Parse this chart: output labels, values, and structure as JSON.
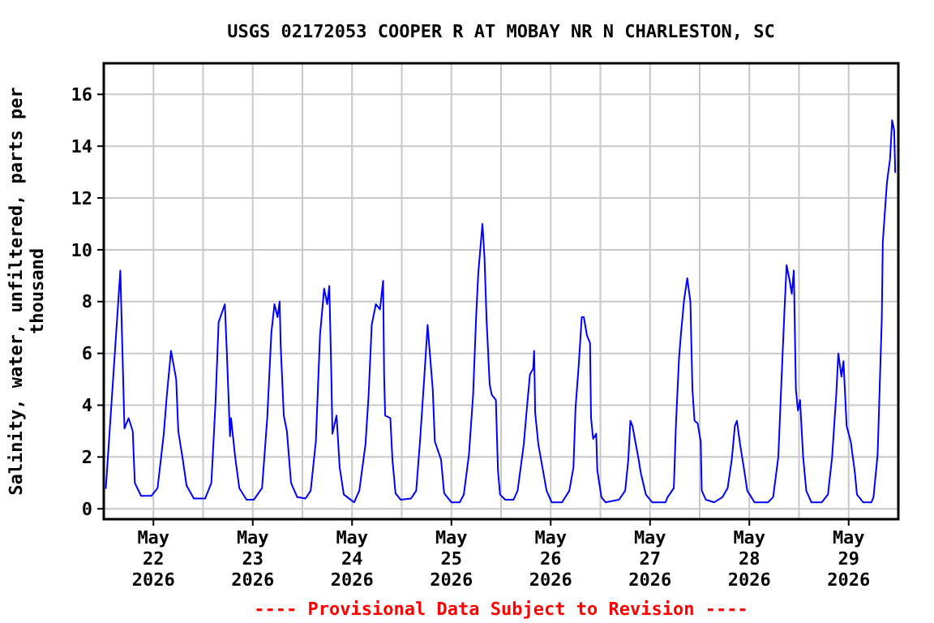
{
  "chart_data": {
    "type": "line",
    "title": "USGS 02172053 COOPER R AT MOBAY NR N CHARLESTON, SC",
    "ylabel": "Salinity, water, unfiltered, parts per thousand",
    "annotations": [
      "---- Provisional Data Subject to Revision ----"
    ],
    "xlim": [
      "2026-05-22T00:00",
      "2026-05-30T00:00"
    ],
    "xticks": [
      {
        "value": "2026-05-22T12:00",
        "label": "May 22 2026"
      },
      {
        "value": "2026-05-23T00:00",
        "label": null
      },
      {
        "value": "2026-05-23T12:00",
        "label": "May 23 2026"
      },
      {
        "value": "2026-05-24T00:00",
        "label": null
      },
      {
        "value": "2026-05-24T12:00",
        "label": "May 24 2026"
      },
      {
        "value": "2026-05-25T00:00",
        "label": null
      },
      {
        "value": "2026-05-25T12:00",
        "label": "May 25 2026"
      },
      {
        "value": "2026-05-26T00:00",
        "label": null
      },
      {
        "value": "2026-05-26T12:00",
        "label": "May 26 2026"
      },
      {
        "value": "2026-05-27T00:00",
        "label": null
      },
      {
        "value": "2026-05-27T12:00",
        "label": "May 27 2026"
      },
      {
        "value": "2026-05-28T00:00",
        "label": null
      },
      {
        "value": "2026-05-28T12:00",
        "label": "May 28 2026"
      },
      {
        "value": "2026-05-29T00:00",
        "label": null
      },
      {
        "value": "2026-05-29T12:00",
        "label": "May 29 2026"
      }
    ],
    "ylim": [
      -0.4,
      17.2
    ],
    "yticks": [
      0,
      2,
      4,
      6,
      8,
      10,
      12,
      14,
      16
    ],
    "grid": true,
    "marker": "none",
    "line_style": "solid",
    "x": [
      "2026-05-22T00:30",
      "2026-05-22T04:00",
      "2026-05-22T05:00",
      "2026-05-22T06:00",
      "2026-05-22T07:00",
      "2026-05-22T07:30",
      "2026-05-22T09:00",
      "2026-05-22T11:30",
      "2026-05-22T13:00",
      "2026-05-22T14:30",
      "2026-05-22T15:15",
      "2026-05-22T16:15",
      "2026-05-22T17:30",
      "2026-05-22T18:00",
      "2026-05-22T19:00",
      "2026-05-22T20:00",
      "2026-05-22T21:45",
      "2026-05-23T00:30",
      "2026-05-23T02:00",
      "2026-05-23T03:00",
      "2026-05-23T03:45",
      "2026-05-23T05:15",
      "2026-05-23T05:45",
      "2026-05-23T06:30",
      "2026-05-23T06:45",
      "2026-05-23T07:45",
      "2026-05-23T08:45",
      "2026-05-23T10:30",
      "2026-05-23T12:15",
      "2026-05-23T14:15",
      "2026-05-23T15:30",
      "2026-05-23T16:30",
      "2026-05-23T17:15",
      "2026-05-23T18:00",
      "2026-05-23T18:30",
      "2026-05-23T18:45",
      "2026-05-23T19:30",
      "2026-05-23T20:15",
      "2026-05-23T21:15",
      "2026-05-23T22:45",
      "2026-05-24T00:45",
      "2026-05-24T02:00",
      "2026-05-24T03:15",
      "2026-05-24T04:15",
      "2026-05-24T05:15",
      "2026-05-24T06:00",
      "2026-05-24T06:30",
      "2026-05-24T07:00",
      "2026-05-24T07:15",
      "2026-05-24T08:15",
      "2026-05-24T09:00",
      "2026-05-24T10:00",
      "2026-05-24T12:30",
      "2026-05-24T13:45",
      "2026-05-24T15:15",
      "2026-05-24T16:00",
      "2026-05-24T16:45",
      "2026-05-24T17:45",
      "2026-05-24T18:45",
      "2026-05-24T19:30",
      "2026-05-24T19:45",
      "2026-05-24T20:00",
      "2026-05-24T21:15",
      "2026-05-24T21:45",
      "2026-05-24T22:30",
      "2026-05-24T23:45",
      "2026-05-25T02:15",
      "2026-05-25T03:30",
      "2026-05-25T04:30",
      "2026-05-25T05:30",
      "2026-05-25T06:15",
      "2026-05-25T06:45",
      "2026-05-25T07:30",
      "2026-05-25T08:00",
      "2026-05-25T09:30",
      "2026-05-25T10:15",
      "2026-05-25T12:00",
      "2026-05-25T14:00",
      "2026-05-25T15:00",
      "2026-05-25T16:15",
      "2026-05-25T17:15",
      "2026-05-25T18:00",
      "2026-05-25T18:30",
      "2026-05-25T19:30",
      "2026-05-25T20:00",
      "2026-05-25T20:30",
      "2026-05-25T21:15",
      "2026-05-25T21:45",
      "2026-05-25T22:45",
      "2026-05-25T23:15",
      "2026-05-25T23:45",
      "2026-05-26T01:00",
      "2026-05-26T03:00",
      "2026-05-26T04:00",
      "2026-05-26T05:30",
      "2026-05-26T06:15",
      "2026-05-26T07:00",
      "2026-05-26T07:45",
      "2026-05-26T08:00",
      "2026-05-26T08:15",
      "2026-05-26T09:00",
      "2026-05-26T10:00",
      "2026-05-26T11:00",
      "2026-05-26T12:15",
      "2026-05-26T14:45",
      "2026-05-26T16:30",
      "2026-05-26T17:30",
      "2026-05-26T18:00",
      "2026-05-26T18:45",
      "2026-05-26T19:30",
      "2026-05-26T20:00",
      "2026-05-26T20:45",
      "2026-05-26T21:30",
      "2026-05-26T21:45",
      "2026-05-26T22:15",
      "2026-05-26T23:00",
      "2026-05-26T23:15",
      "2026-05-27T00:15",
      "2026-05-27T01:15",
      "2026-05-27T04:30",
      "2026-05-27T06:00",
      "2026-05-27T06:45",
      "2026-05-27T07:15",
      "2026-05-27T07:45",
      "2026-05-27T09:15",
      "2026-05-27T09:45",
      "2026-05-27T11:00",
      "2026-05-27T12:30",
      "2026-05-27T15:45",
      "2026-05-27T16:15",
      "2026-05-27T17:45",
      "2026-05-27T18:15",
      "2026-05-27T19:00",
      "2026-05-27T19:30",
      "2026-05-27T20:15",
      "2026-05-27T21:00",
      "2026-05-27T21:45",
      "2026-05-27T22:15",
      "2026-05-27T22:45",
      "2026-05-27T23:30",
      "2026-05-28T00:15",
      "2026-05-28T00:30",
      "2026-05-28T01:30",
      "2026-05-28T03:30",
      "2026-05-28T05:30",
      "2026-05-28T06:45",
      "2026-05-28T07:45",
      "2026-05-28T08:30",
      "2026-05-28T09:00",
      "2026-05-28T09:45",
      "2026-05-28T10:45",
      "2026-05-28T11:30",
      "2026-05-28T13:15",
      "2026-05-28T16:30",
      "2026-05-28T17:45",
      "2026-05-28T19:00",
      "2026-05-28T19:45",
      "2026-05-28T20:30",
      "2026-05-28T21:00",
      "2026-05-28T21:45",
      "2026-05-28T22:15",
      "2026-05-28T22:45",
      "2026-05-28T23:15",
      "2026-05-28T23:45",
      "2026-05-29T00:15",
      "2026-05-29T01:00",
      "2026-05-29T01:45",
      "2026-05-29T03:00",
      "2026-05-29T05:30",
      "2026-05-29T07:00",
      "2026-05-29T08:00",
      "2026-05-29T09:00",
      "2026-05-29T09:30",
      "2026-05-29T10:15",
      "2026-05-29T10:45",
      "2026-05-29T11:30",
      "2026-05-29T12:30",
      "2026-05-29T13:30",
      "2026-05-29T14:00",
      "2026-05-29T15:30",
      "2026-05-29T17:30",
      "2026-05-29T18:00",
      "2026-05-29T19:00",
      "2026-05-29T19:30",
      "2026-05-29T20:00",
      "2026-05-29T20:15",
      "2026-05-29T21:15",
      "2026-05-29T22:00",
      "2026-05-29T22:30",
      "2026-05-29T23:00",
      "2026-05-29T23:15"
    ],
    "series": [
      {
        "color": "#0000ff",
        "values": [
          0.8,
          9.2,
          3.1,
          3.5,
          3.0,
          1.0,
          0.5,
          0.5,
          0.8,
          2.9,
          4.4,
          6.1,
          5.0,
          3.0,
          2.0,
          0.9,
          0.4,
          0.4,
          1.0,
          4.1,
          7.2,
          7.9,
          6.0,
          2.8,
          3.5,
          2.0,
          0.8,
          0.35,
          0.35,
          0.8,
          3.5,
          6.8,
          7.9,
          7.4,
          8.0,
          6.3,
          3.6,
          3.0,
          1.0,
          0.45,
          0.4,
          0.7,
          2.6,
          6.7,
          8.5,
          7.9,
          8.6,
          5.1,
          2.9,
          3.6,
          1.6,
          0.55,
          0.25,
          0.7,
          2.5,
          4.4,
          7.1,
          7.9,
          7.7,
          8.8,
          5.1,
          3.6,
          3.5,
          1.9,
          0.6,
          0.35,
          0.4,
          0.7,
          2.8,
          5.2,
          7.1,
          6.1,
          4.6,
          2.6,
          1.9,
          0.6,
          0.25,
          0.25,
          0.55,
          2.1,
          4.4,
          7.5,
          9.1,
          11.0,
          9.7,
          7.3,
          4.8,
          4.4,
          4.2,
          1.5,
          0.55,
          0.35,
          0.35,
          0.7,
          2.5,
          3.9,
          5.2,
          5.4,
          6.1,
          3.7,
          2.5,
          1.6,
          0.7,
          0.25,
          0.25,
          0.7,
          1.6,
          3.9,
          5.5,
          7.4,
          7.4,
          6.7,
          6.4,
          3.5,
          2.7,
          2.9,
          1.5,
          0.45,
          0.25,
          0.35,
          0.7,
          1.9,
          3.4,
          3.2,
          1.9,
          1.4,
          0.55,
          0.25,
          0.25,
          0.45,
          0.8,
          3.2,
          5.8,
          6.8,
          8.1,
          8.9,
          8.0,
          4.6,
          3.4,
          3.3,
          2.6,
          0.7,
          0.35,
          0.25,
          0.45,
          0.8,
          1.9,
          3.2,
          3.4,
          2.5,
          1.5,
          0.7,
          0.25,
          0.25,
          0.45,
          2.0,
          4.9,
          7.7,
          9.4,
          8.8,
          8.3,
          9.2,
          4.6,
          3.8,
          4.2,
          2.0,
          0.7,
          0.25,
          0.25,
          0.55,
          2.0,
          4.4,
          6.0,
          5.1,
          5.7,
          3.2,
          2.6,
          1.4,
          0.55,
          0.25,
          0.25,
          0.45,
          2.1,
          4.7,
          7.3,
          10.3,
          12.6,
          13.5,
          15.0,
          14.6,
          13.0
        ]
      }
    ]
  }
}
